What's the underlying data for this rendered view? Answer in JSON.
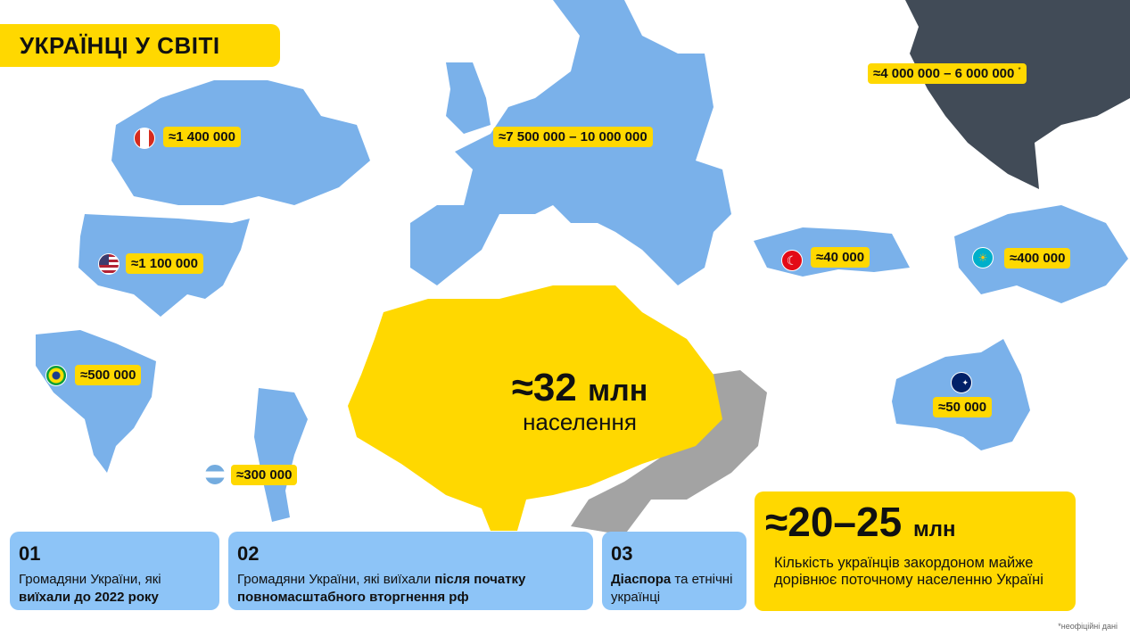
{
  "title": "УКРАЇНЦІ У СВІТІ",
  "colors": {
    "accent": "#FFD800",
    "map_blue": "#7AB1EA",
    "card_blue": "#8DC4F7",
    "russia": "#414B57",
    "occupied": "#A3A3A3"
  },
  "labels": {
    "russia": "≈4 000 000 – 6 000 000",
    "russia_mark": "*",
    "europe": "≈7 500 000 – 10 000 000",
    "canada": "≈1 400 000",
    "usa": "≈1 100 000",
    "brazil": "≈500 000",
    "argentina": "≈300 000",
    "turkey": "≈40 000",
    "kazakhstan": "≈400 000",
    "australia": "≈50 000"
  },
  "ukraine": {
    "value": "≈32",
    "unit": "млн",
    "caption": "населення"
  },
  "cards": [
    {
      "num": "01",
      "text": "Громадяни України, які ",
      "bold": "виїхали до 2022 року",
      "after": ""
    },
    {
      "num": "02",
      "text": "Громадяни України, які виїхали ",
      "bold": "після початку повномасштабного вторгнення рф",
      "after": ""
    },
    {
      "num": "03",
      "text": "",
      "bold": "Діаспора",
      "after": " та етнічні українці"
    }
  ],
  "summary": {
    "value": "≈20–25",
    "unit": "млн",
    "text": "Кількість українців закордоном майже дорівнює поточному населенню Україні"
  },
  "footnote": "*неофіційні дані"
}
